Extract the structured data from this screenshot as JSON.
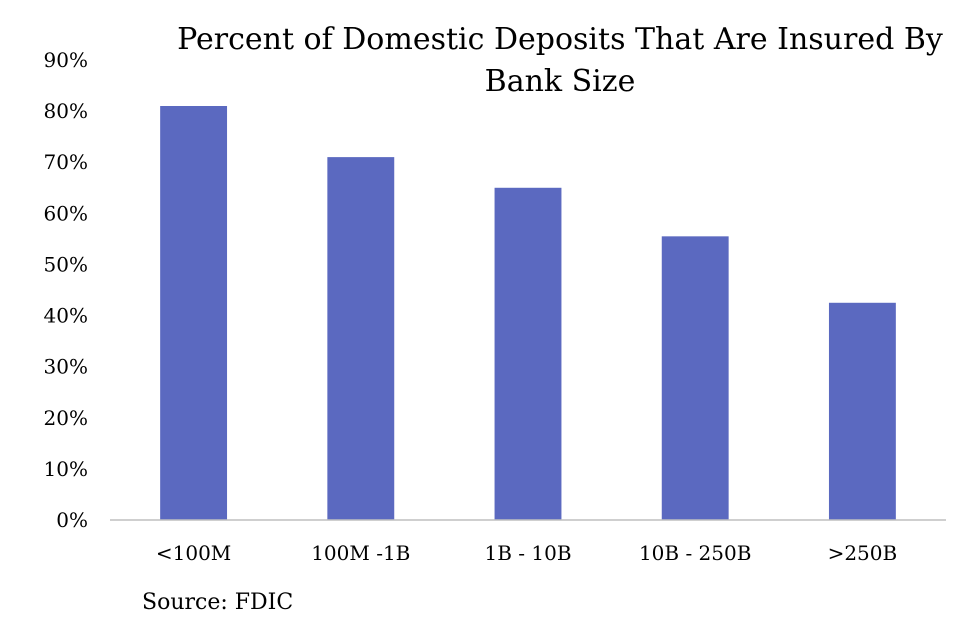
{
  "chart_data": {
    "type": "bar",
    "title": "Percent of Domestic Deposits That Are Insured By Bank Size",
    "title_lines": [
      "Percent of Domestic Deposits That Are Insured By",
      "Bank Size"
    ],
    "categories": [
      "<100M",
      "100M -1B",
      "1B - 10B",
      "10B - 250B",
      ">250B"
    ],
    "values": [
      81,
      71,
      65,
      55.5,
      42.5
    ],
    "unit": "%",
    "ylim": [
      0,
      90
    ],
    "yticks": [
      0,
      10,
      20,
      30,
      40,
      50,
      60,
      70,
      80,
      90
    ],
    "ytick_labels": [
      "0%",
      "10%",
      "20%",
      "30%",
      "40%",
      "50%",
      "60%",
      "70%",
      "80%",
      "90%"
    ],
    "xlabel": "",
    "ylabel": "",
    "grid": false,
    "legend": "none",
    "bar_color": "#5b69c0",
    "source": "Source: FDIC"
  }
}
